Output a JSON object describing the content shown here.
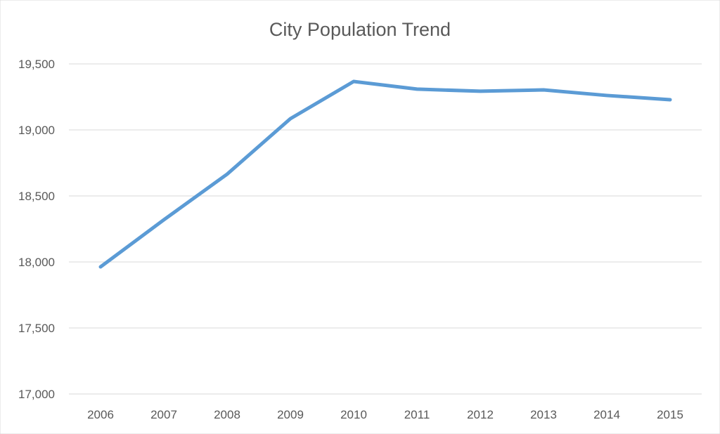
{
  "chart_data": {
    "type": "line",
    "title": "City Population Trend",
    "xlabel": "",
    "ylabel": "",
    "categories": [
      "2006",
      "2007",
      "2008",
      "2009",
      "2010",
      "2011",
      "2012",
      "2013",
      "2014",
      "2015"
    ],
    "series": [
      {
        "values": [
          17963,
          18319,
          18665,
          19085,
          19367,
          19309,
          19293,
          19303,
          19261,
          19229
        ],
        "color": "#5B9BD5"
      }
    ],
    "ylim": [
      17000,
      19500
    ],
    "yticks": [
      17000,
      17500,
      18000,
      18500,
      19000,
      19500
    ],
    "ytick_labels": [
      "17,000",
      "17,500",
      "18,000",
      "18,500",
      "19,000",
      "19,500"
    ],
    "grid": true,
    "legend": "none"
  }
}
